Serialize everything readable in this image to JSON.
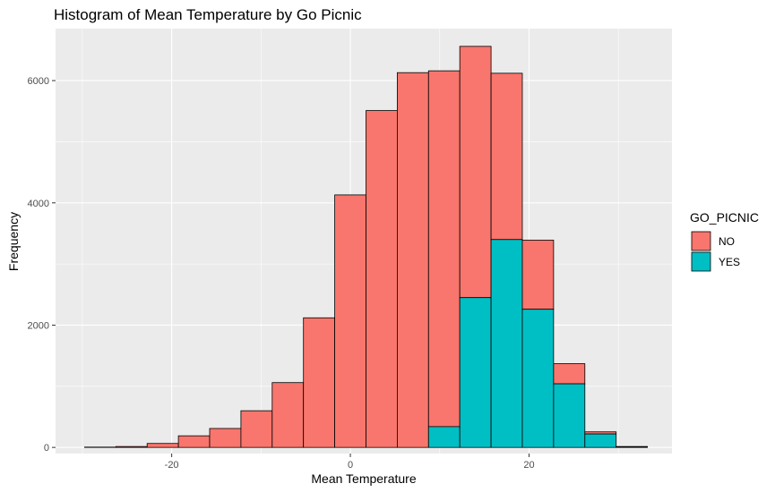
{
  "chart_data": {
    "type": "bar",
    "stacked": true,
    "title": "Histogram of Mean Temperature by Go Picnic",
    "xlabel": "Mean Temperature",
    "ylabel": "Frequency",
    "xlim": [
      -33,
      36
    ],
    "ylim": [
      -100,
      6850
    ],
    "x_ticks": [
      -20,
      0,
      20
    ],
    "y_ticks": [
      0,
      2000,
      4000,
      6000
    ],
    "grid": true,
    "legend": {
      "title": "GO_PICNIC",
      "position": "right",
      "entries": [
        {
          "label": "NO",
          "color": "#F8766D"
        },
        {
          "label": "YES",
          "color": "#00BFC4"
        }
      ]
    },
    "bin_width": 3.5,
    "bin_starts": [
      -29.75,
      -26.25,
      -22.75,
      -19.25,
      -15.75,
      -12.25,
      -8.75,
      -5.25,
      -1.75,
      1.75,
      5.25,
      8.75,
      12.25,
      15.75,
      19.25,
      22.75,
      26.25,
      29.75
    ],
    "series": [
      {
        "name": "NO",
        "values": [
          5,
          15,
          65,
          190,
          310,
          600,
          1060,
          2120,
          4130,
          5510,
          6130,
          5820,
          4110,
          2720,
          1130,
          330,
          35,
          5
        ]
      },
      {
        "name": "YES",
        "values": [
          0,
          0,
          0,
          0,
          0,
          0,
          0,
          0,
          0,
          0,
          0,
          340,
          2450,
          3400,
          2260,
          1040,
          220,
          10
        ]
      }
    ]
  }
}
